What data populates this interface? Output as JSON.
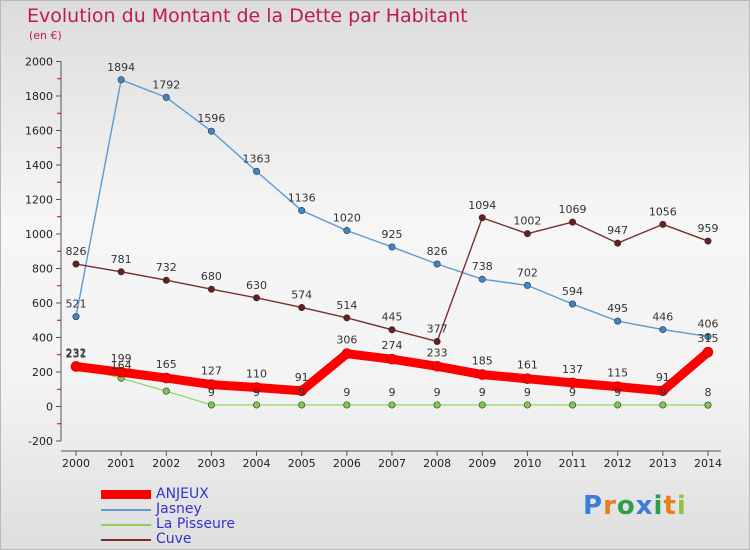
{
  "header": {
    "title": "Evolution du Montant de la Dette par Habitant",
    "subtitle": "(en €)"
  },
  "logo": {
    "letters": [
      "P",
      "r",
      "o",
      "x",
      "i",
      "t",
      "i"
    ],
    "colors": [
      "#3b7dd8",
      "#e67e22",
      "#2e9e4a",
      "#3b7dd8",
      "#2e9e4a",
      "#e67e22",
      "#8cc63f"
    ]
  },
  "chart_data": {
    "type": "line",
    "title": "Evolution du Montant de la Dette par Habitant",
    "subtitle": "(en €)",
    "xlabel": "",
    "ylabel": "",
    "x": [
      "2000",
      "2001",
      "2002",
      "2003",
      "2004",
      "2005",
      "2006",
      "2007",
      "2008",
      "2009",
      "2010",
      "2011",
      "2012",
      "2013",
      "2014"
    ],
    "ylim": [
      -200,
      2000
    ],
    "yticks": [
      -200,
      0,
      200,
      400,
      600,
      800,
      1000,
      1200,
      1400,
      1600,
      1800,
      2000
    ],
    "grid": false,
    "legend_position": "bottom-left",
    "series": [
      {
        "name": "Jasney",
        "color": "#5b9bd5",
        "values": [
          521,
          1894,
          1792,
          1596,
          1363,
          1136,
          1020,
          925,
          826,
          738,
          702,
          594,
          495,
          446,
          406
        ],
        "labels": [
          "521",
          "1894",
          "1792",
          "1596",
          "1363",
          "1136",
          "1020",
          "925",
          "826",
          "738",
          "702",
          "594",
          "495",
          "446",
          "406"
        ]
      },
      {
        "name": "Cuve",
        "color": "#7b2e2e",
        "values": [
          826,
          781,
          732,
          680,
          630,
          574,
          514,
          445,
          377,
          1094,
          1002,
          1069,
          947,
          1056,
          959
        ],
        "labels": [
          "826",
          "781",
          "732",
          "680",
          "630",
          "574",
          "514",
          "445",
          "377",
          "1094",
          "1002",
          "1069",
          "947",
          "1056",
          "959"
        ]
      },
      {
        "name": "La Pisseure",
        "color": "#8cd25a",
        "values": [
          231,
          164,
          89,
          9,
          9,
          9,
          9,
          9,
          9,
          9,
          9,
          9,
          9,
          9,
          8
        ],
        "labels": [
          "231",
          "164",
          "",
          "9",
          "9",
          "9",
          "9",
          "9",
          "9",
          "9",
          "9",
          "9",
          "9",
          "9",
          "8"
        ]
      },
      {
        "name": "ANJEUX",
        "color": "#ff0000",
        "values": [
          232,
          199,
          165,
          127,
          110,
          91,
          306,
          274,
          233,
          185,
          161,
          137,
          115,
          91,
          315
        ],
        "labels": [
          "232",
          "199",
          "165",
          "127",
          "110",
          "91",
          "306",
          "274",
          "233",
          "185",
          "161",
          "137",
          "115",
          "91",
          "315"
        ]
      }
    ],
    "legend": [
      {
        "name": "ANJEUX",
        "color": "#ff0000",
        "thick": true
      },
      {
        "name": "Jasney",
        "color": "#5b9bd5",
        "thick": false
      },
      {
        "name": "La Pisseure",
        "color": "#8cd25a",
        "thick": false
      },
      {
        "name": "Cuve",
        "color": "#7b2e2e",
        "thick": false
      }
    ]
  }
}
